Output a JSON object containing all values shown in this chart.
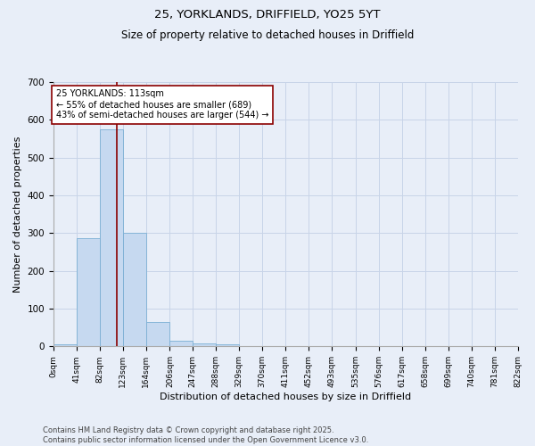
{
  "title1": "25, YORKLANDS, DRIFFIELD, YO25 5YT",
  "title2": "Size of property relative to detached houses in Driffield",
  "xlabel": "Distribution of detached houses by size in Driffield",
  "ylabel": "Number of detached properties",
  "footnote": "Contains HM Land Registry data © Crown copyright and database right 2025.\nContains public sector information licensed under the Open Government Licence v3.0.",
  "bin_edges": [
    0,
    41,
    82,
    123,
    164,
    206,
    247,
    288,
    329,
    370,
    411,
    452,
    493,
    535,
    576,
    617,
    658,
    699,
    740,
    781,
    822
  ],
  "bar_heights": [
    5,
    287,
    575,
    300,
    65,
    15,
    8,
    5,
    0,
    0,
    0,
    0,
    0,
    0,
    0,
    0,
    0,
    0,
    0,
    0
  ],
  "bar_color": "#c6d9f0",
  "bar_edgecolor": "#7bafd4",
  "vline_x": 113,
  "vline_color": "#8b0000",
  "annotation_text": "25 YORKLANDS: 113sqm\n← 55% of detached houses are smaller (689)\n43% of semi-detached houses are larger (544) →",
  "annotation_box_color": "white",
  "annotation_box_edgecolor": "#8b0000",
  "ylim": [
    0,
    700
  ],
  "yticks": [
    0,
    100,
    200,
    300,
    400,
    500,
    600,
    700
  ],
  "grid_color": "#c8d4e8",
  "background_color": "#e8eef8",
  "fig_background": "#e8eef8"
}
